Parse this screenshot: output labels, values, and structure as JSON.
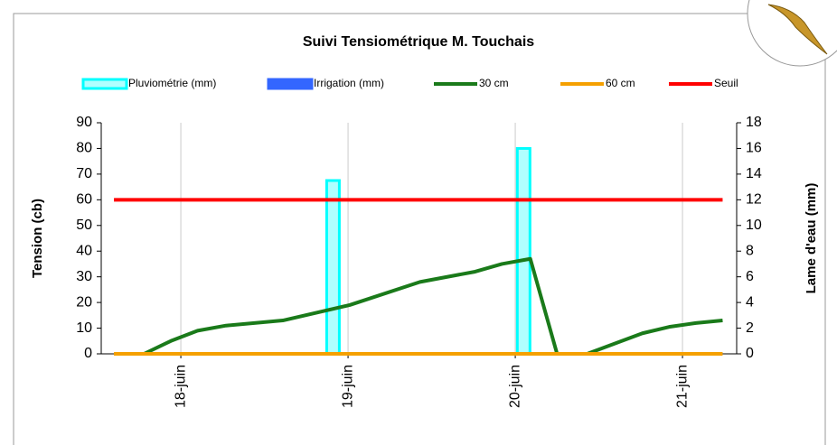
{
  "chart_data": {
    "type": "combo",
    "title": "Suivi Tensiométrique M. Touchais",
    "ylabel": "Tension (cb)",
    "y2label": "Lame d'eau (mm)",
    "xlim": [
      17.524,
      21.324
    ],
    "xticks": [
      {
        "value": 18,
        "label": "18-juin"
      },
      {
        "value": 19,
        "label": "19-juin"
      },
      {
        "value": 20,
        "label": "20-juin"
      },
      {
        "value": 21,
        "label": "21-juin"
      }
    ],
    "ylim": [
      0,
      90
    ],
    "yticks": [
      0,
      10,
      20,
      30,
      40,
      50,
      60,
      70,
      80,
      90
    ],
    "y2lim": [
      0,
      18
    ],
    "y2ticks": [
      0,
      2,
      4,
      6,
      8,
      10,
      12,
      14,
      16,
      18
    ],
    "grid": true,
    "legend": "top",
    "series": [
      {
        "name": "Pluviométrie (mm)",
        "kind": "bar",
        "axis": "y2",
        "color": "#00ffff",
        "x": [
          18.91,
          20.05
        ],
        "values": [
          13.5,
          16
        ]
      },
      {
        "name": "Irrigation (mm)",
        "kind": "bar",
        "axis": "y2",
        "color": "#3366ff",
        "x": [],
        "values": []
      },
      {
        "name": "30 cm",
        "kind": "line",
        "color": "#1a7a1a",
        "x": [
          17.62,
          17.78,
          17.94,
          18.1,
          18.27,
          18.61,
          19.01,
          19.43,
          19.76,
          19.92,
          20.09,
          20.25,
          20.43,
          20.76,
          20.92,
          21.08,
          21.24
        ],
        "values": [
          0,
          0,
          5,
          9,
          11,
          13,
          19,
          28,
          32,
          35,
          37,
          0,
          0,
          8,
          10.5,
          12,
          13
        ]
      },
      {
        "name": "60 cm",
        "kind": "line",
        "color": "#f5a000",
        "x": [
          17.6,
          21.24
        ],
        "values": [
          0,
          0
        ]
      },
      {
        "name": "Seuil",
        "kind": "line",
        "color": "#ff0000",
        "x": [
          17.6,
          21.24
        ],
        "values": [
          60,
          60
        ]
      }
    ]
  }
}
